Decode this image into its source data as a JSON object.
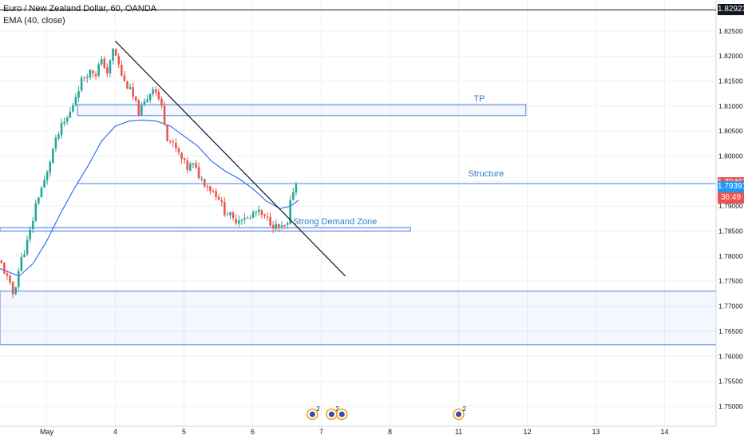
{
  "header": {
    "symbol_line": "Euro / New Zealand Dollar, 60, OANDA",
    "indicator_line": "EMA (40, close)"
  },
  "chart_data": {
    "type": "candlestick",
    "xlim": [
      -0.68,
      9.75
    ],
    "ylim": [
      1.746,
      1.8312
    ],
    "x_ticks": [
      {
        "value": 0,
        "label": "May"
      },
      {
        "value": 1,
        "label": "4"
      },
      {
        "value": 2,
        "label": "5"
      },
      {
        "value": 3,
        "label": "6"
      },
      {
        "value": 4,
        "label": "7"
      },
      {
        "value": 5,
        "label": "8"
      },
      {
        "value": 6,
        "label": "11"
      },
      {
        "value": 7,
        "label": "12"
      },
      {
        "value": 8,
        "label": "13"
      },
      {
        "value": 9,
        "label": "14"
      }
    ],
    "y_ticks": [
      "1.82500",
      "1.82000",
      "1.81500",
      "1.81000",
      "1.80500",
      "1.80000",
      "1.79500",
      "1.79000",
      "1.78500",
      "1.78000",
      "1.77500",
      "1.77000",
      "1.76500",
      "1.76000",
      "1.75500",
      "1.75000"
    ],
    "price_labels": [
      {
        "value": 1.82923,
        "label": "1.82923",
        "bg": "#131722"
      },
      {
        "value": 1.79467,
        "label": "1.79467",
        "bg": "#ef5350"
      },
      {
        "value": 1.7917,
        "label": "36:49",
        "bg": "#ef5350"
      },
      {
        "value": 1.79391,
        "label": "1.79391",
        "bg": "#2196f3"
      }
    ],
    "close_path": [
      [
        -0.68,
        1.779
      ],
      [
        -0.6,
        1.7765
      ],
      [
        -0.52,
        1.7735
      ],
      [
        -0.48,
        1.772
      ],
      [
        -0.45,
        1.7745
      ],
      [
        -0.38,
        1.779
      ],
      [
        -0.3,
        1.782
      ],
      [
        -0.22,
        1.786
      ],
      [
        -0.15,
        1.791
      ],
      [
        -0.08,
        1.7935
      ],
      [
        0.0,
        1.796
      ],
      [
        0.08,
        1.801
      ],
      [
        0.15,
        1.8035
      ],
      [
        0.22,
        1.806
      ],
      [
        0.28,
        1.807
      ],
      [
        0.35,
        1.809
      ],
      [
        0.42,
        1.812
      ],
      [
        0.5,
        1.815
      ],
      [
        0.58,
        1.8165
      ],
      [
        0.65,
        1.817
      ],
      [
        0.72,
        1.8165
      ],
      [
        0.78,
        1.819
      ],
      [
        0.85,
        1.818
      ],
      [
        0.9,
        1.816
      ],
      [
        0.95,
        1.8215
      ],
      [
        1.0,
        1.8205
      ],
      [
        1.05,
        1.818
      ],
      [
        1.12,
        1.815
      ],
      [
        1.2,
        1.8135
      ],
      [
        1.28,
        1.811
      ],
      [
        1.35,
        1.8085
      ],
      [
        1.42,
        1.8105
      ],
      [
        1.5,
        1.8125
      ],
      [
        1.55,
        1.814
      ],
      [
        1.62,
        1.812
      ],
      [
        1.7,
        1.8085
      ],
      [
        1.75,
        1.804
      ],
      [
        1.82,
        1.8025
      ],
      [
        1.9,
        1.801
      ],
      [
        1.98,
        1.799
      ],
      [
        2.05,
        1.7975
      ],
      [
        2.12,
        1.7985
      ],
      [
        2.2,
        1.7965
      ],
      [
        2.28,
        1.795
      ],
      [
        2.35,
        1.794
      ],
      [
        2.42,
        1.793
      ],
      [
        2.5,
        1.792
      ],
      [
        2.58,
        1.789
      ],
      [
        2.65,
        1.7885
      ],
      [
        2.72,
        1.787
      ],
      [
        2.8,
        1.7875
      ],
      [
        2.88,
        1.788
      ],
      [
        2.95,
        1.787
      ],
      [
        3.02,
        1.789
      ],
      [
        3.1,
        1.7885
      ],
      [
        3.18,
        1.7875
      ],
      [
        3.25,
        1.787
      ],
      [
        3.32,
        1.786
      ],
      [
        3.4,
        1.7855
      ],
      [
        3.47,
        1.7858
      ],
      [
        3.52,
        1.7862
      ],
      [
        3.56,
        1.792
      ],
      [
        3.62,
        1.7945
      ],
      [
        3.67,
        1.794
      ]
    ],
    "ema_path": [
      [
        -0.68,
        1.7775
      ],
      [
        -0.4,
        1.776
      ],
      [
        -0.2,
        1.7785
      ],
      [
        0.0,
        1.783
      ],
      [
        0.2,
        1.7885
      ],
      [
        0.4,
        1.7935
      ],
      [
        0.6,
        1.798
      ],
      [
        0.8,
        1.803
      ],
      [
        1.0,
        1.806
      ],
      [
        1.2,
        1.807
      ],
      [
        1.4,
        1.8072
      ],
      [
        1.6,
        1.807
      ],
      [
        1.8,
        1.806
      ],
      [
        2.0,
        1.804
      ],
      [
        2.2,
        1.802
      ],
      [
        2.4,
        1.799
      ],
      [
        2.6,
        1.797
      ],
      [
        2.8,
        1.7955
      ],
      [
        3.0,
        1.7935
      ],
      [
        3.2,
        1.791
      ],
      [
        3.4,
        1.7895
      ],
      [
        3.55,
        1.79
      ],
      [
        3.67,
        1.7912
      ]
    ],
    "trendline": {
      "x1": 1.0,
      "y1": 1.823,
      "x2": 4.35,
      "y2": 1.776
    },
    "zones": [
      {
        "x1": 0.45,
        "x2": 6.98,
        "y1": 1.8081,
        "y2": 1.8103,
        "label": "TP",
        "label_x": 6.3
      },
      {
        "x1": -0.68,
        "x2": 5.3,
        "y1": 1.785,
        "y2": 1.7857,
        "label": "Strong Demand Zone",
        "label_x": 4.2
      },
      {
        "x1": -0.68,
        "x2": 9.75,
        "y1": 1.7623,
        "y2": 1.773,
        "label": "",
        "label_x": 0
      }
    ],
    "hlines": [
      {
        "x1": 0.45,
        "y": 1.7945,
        "label": "Structure",
        "label_x": 6.4
      }
    ],
    "events": [
      {
        "x": 3.87,
        "label": "2"
      },
      {
        "x": 4.15,
        "label": "2"
      },
      {
        "x": 4.3,
        "label": ""
      },
      {
        "x": 6.0,
        "label": "2"
      }
    ],
    "colors": {
      "up": "#26a69a",
      "down": "#ef5350",
      "ema": "#2962ff",
      "zone_border": "#4a7fd9",
      "zone_fill": "#2962ff",
      "zone_text": "#2f7cc4",
      "trendline": "#131722",
      "grid": "#edf0f3"
    }
  }
}
